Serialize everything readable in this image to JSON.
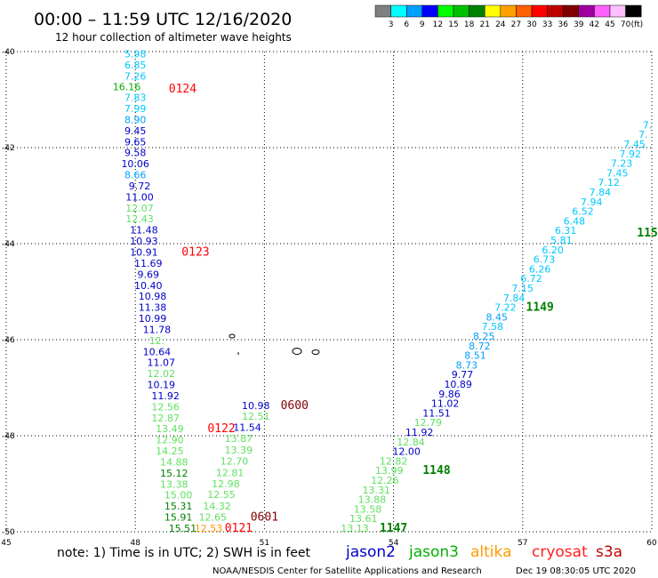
{
  "header": {
    "title": "00:00 – 11:59 UTC 12/16/2020",
    "subtitle": "12 hour collection of altimeter wave heights"
  },
  "legend": {
    "colors": [
      "#808080",
      "#00ffff",
      "#00a0ff",
      "#0000ff",
      "#00ff00",
      "#00c000",
      "#008000",
      "#ffff00",
      "#ffa000",
      "#ff6000",
      "#ff0000",
      "#c00000",
      "#800000",
      "#a000a0",
      "#ff60ff",
      "#ffc0ff",
      "#000000"
    ],
    "labels": [
      "3",
      "6",
      "9",
      "12",
      "15",
      "18",
      "21",
      "24",
      "27",
      "30",
      "33",
      "36",
      "39",
      "42",
      "45",
      "70"
    ],
    "unit": "(ft)"
  },
  "footer": {
    "note": "note:  1) Time is in UTC;  2) SWH is in feet",
    "satellites": [
      {
        "name": "jason2",
        "color": "#0000c8"
      },
      {
        "name": "jason3",
        "color": "#00b000"
      },
      {
        "name": "altika",
        "color": "#ff9900"
      },
      {
        "name": "cryosat",
        "color": "#ff2020"
      },
      {
        "name": "s3a",
        "color": "#c00000"
      }
    ],
    "credit": "NOAA/NESDIS Center for Satellite Applications and Research",
    "timestamp": "Dec 19 08:30:05 UTC 2020"
  },
  "chart_data": {
    "type": "scatter",
    "title": "12 hour collection of altimeter wave heights",
    "xlim": [
      45,
      60
    ],
    "ylim": [
      -50,
      -40
    ],
    "x_ticks": [
      "45",
      "48",
      "51",
      "54",
      "57",
      "60"
    ],
    "y_ticks": [
      "-40",
      "-42",
      "-44",
      "-46",
      "-48",
      "-50"
    ],
    "grid": true,
    "series": [
      {
        "name": "track 0124-0121",
        "points": [
          {
            "lon": 48.0,
            "lat": -40.12,
            "value": "5.98",
            "color": "#00c8ff"
          },
          {
            "lon": 48.0,
            "lat": -40.35,
            "value": "6.85",
            "color": "#00c8ff"
          },
          {
            "lon": 48.0,
            "lat": -40.58,
            "value": "7.26",
            "color": "#00c8ff"
          },
          {
            "lon": 47.8,
            "lat": -40.81,
            "value": "16.16",
            "color": "#00b000"
          },
          {
            "lon": 48.0,
            "lat": -41.03,
            "value": "7.83",
            "color": "#00c8ff"
          },
          {
            "lon": 48.0,
            "lat": -41.26,
            "value": "7.99",
            "color": "#00c8ff"
          },
          {
            "lon": 48.0,
            "lat": -41.49,
            "value": "8.90",
            "color": "#00a0ff"
          },
          {
            "lon": 48.0,
            "lat": -41.72,
            "value": "9.45",
            "color": "#0000c8"
          },
          {
            "lon": 48.0,
            "lat": -41.95,
            "value": "9.65",
            "color": "#0000c8"
          },
          {
            "lon": 48.0,
            "lat": -42.18,
            "value": "9.58",
            "color": "#0000c8"
          },
          {
            "lon": 48.0,
            "lat": -42.41,
            "value": "10.06",
            "color": "#0000c8"
          },
          {
            "lon": 48.0,
            "lat": -42.64,
            "value": "8.66",
            "color": "#00a0ff"
          },
          {
            "lon": 48.1,
            "lat": -42.87,
            "value": "9.72",
            "color": "#0000c8"
          },
          {
            "lon": 48.1,
            "lat": -43.1,
            "value": "11.00",
            "color": "#0000c8"
          },
          {
            "lon": 48.1,
            "lat": -43.33,
            "value": "12.07",
            "color": "#60e060"
          },
          {
            "lon": 48.1,
            "lat": -43.56,
            "value": "12.43",
            "color": "#60e060"
          },
          {
            "lon": 48.2,
            "lat": -43.79,
            "value": "11.48",
            "color": "#0000c8"
          },
          {
            "lon": 48.2,
            "lat": -44.02,
            "value": "10.93",
            "color": "#0000c8"
          },
          {
            "lon": 48.2,
            "lat": -44.25,
            "value": "10.91",
            "color": "#0000c8"
          },
          {
            "lon": 48.3,
            "lat": -44.48,
            "value": "11.69",
            "color": "#0000c8"
          },
          {
            "lon": 48.3,
            "lat": -44.71,
            "value": "9.69",
            "color": "#0000c8"
          },
          {
            "lon": 48.3,
            "lat": -44.94,
            "value": "10.40",
            "color": "#0000c8"
          },
          {
            "lon": 48.4,
            "lat": -45.17,
            "value": "10.98",
            "color": "#0000c8"
          },
          {
            "lon": 48.4,
            "lat": -45.4,
            "value": "11.38",
            "color": "#0000c8"
          },
          {
            "lon": 48.4,
            "lat": -45.63,
            "value": "10.99",
            "color": "#0000c8"
          },
          {
            "lon": 48.5,
            "lat": -45.86,
            "value": "11.78",
            "color": "#0000c8"
          },
          {
            "lon": 48.5,
            "lat": -46.09,
            "value": "12.",
            "color": "#60e060"
          },
          {
            "lon": 48.5,
            "lat": -46.32,
            "value": "10.64",
            "color": "#0000c8"
          },
          {
            "lon": 48.6,
            "lat": -46.55,
            "value": "11.07",
            "color": "#0000c8"
          },
          {
            "lon": 48.6,
            "lat": -46.78,
            "value": "12.02",
            "color": "#60e060"
          },
          {
            "lon": 48.6,
            "lat": -47.01,
            "value": "10.19",
            "color": "#0000c8"
          },
          {
            "lon": 48.7,
            "lat": -47.24,
            "value": "11.92",
            "color": "#0000c8"
          },
          {
            "lon": 48.7,
            "lat": -47.47,
            "value": "12.56",
            "color": "#60e060"
          },
          {
            "lon": 48.7,
            "lat": -47.7,
            "value": "12.87",
            "color": "#60e060"
          },
          {
            "lon": 48.8,
            "lat": -47.93,
            "value": "13.49",
            "color": "#60e060"
          },
          {
            "lon": 48.8,
            "lat": -48.16,
            "value": "12.90",
            "color": "#60e060"
          },
          {
            "lon": 48.8,
            "lat": -48.39,
            "value": "14.25",
            "color": "#60e060"
          },
          {
            "lon": 48.9,
            "lat": -48.62,
            "value": "14.88",
            "color": "#60e060"
          },
          {
            "lon": 48.9,
            "lat": -48.85,
            "value": "15.12",
            "color": "#008000"
          },
          {
            "lon": 48.9,
            "lat": -49.08,
            "value": "13.38",
            "color": "#60e060"
          },
          {
            "lon": 49.0,
            "lat": -49.31,
            "value": "15.00",
            "color": "#60e060"
          },
          {
            "lon": 49.0,
            "lat": -49.54,
            "value": "15.31",
            "color": "#008000"
          },
          {
            "lon": 49.0,
            "lat": -49.77,
            "value": "15.91",
            "color": "#008000"
          },
          {
            "lon": 49.1,
            "lat": -50.0,
            "value": "15.51",
            "color": "#008000"
          }
        ]
      },
      {
        "name": "track 0600-0601",
        "points": [
          {
            "lon": 50.8,
            "lat": -47.44,
            "value": "10.98",
            "color": "#0000c8"
          },
          {
            "lon": 50.8,
            "lat": -47.67,
            "value": "12.51",
            "color": "#60e060"
          },
          {
            "lon": 50.6,
            "lat": -47.9,
            "value": "11.54",
            "color": "#0000c8"
          },
          {
            "lon": 50.4,
            "lat": -48.13,
            "value": "13.87",
            "color": "#60e060"
          },
          {
            "lon": 50.4,
            "lat": -48.37,
            "value": "13.39",
            "color": "#60e060"
          },
          {
            "lon": 50.3,
            "lat": -48.6,
            "value": "12.70",
            "color": "#60e060"
          },
          {
            "lon": 50.2,
            "lat": -48.84,
            "value": "12.81",
            "color": "#60e060"
          },
          {
            "lon": 50.1,
            "lat": -49.07,
            "value": "12.98",
            "color": "#60e060"
          },
          {
            "lon": 50.0,
            "lat": -49.3,
            "value": "12.55",
            "color": "#60e060"
          },
          {
            "lon": 49.9,
            "lat": -49.54,
            "value": "14.32",
            "color": "#60e060"
          },
          {
            "lon": 49.8,
            "lat": -49.77,
            "value": "12.65",
            "color": "#60e060"
          },
          {
            "lon": 49.7,
            "lat": -50.0,
            "value": "12.53",
            "color": "#ff9900"
          }
        ]
      },
      {
        "name": "track 1147-1150",
        "points": [
          {
            "lon": 53.1,
            "lat": -50.0,
            "value": "13.13",
            "color": "#60e060"
          },
          {
            "lon": 53.3,
            "lat": -49.8,
            "value": "13.61",
            "color": "#60e060"
          },
          {
            "lon": 53.4,
            "lat": -49.6,
            "value": "13.58",
            "color": "#60e060"
          },
          {
            "lon": 53.5,
            "lat": -49.4,
            "value": "13.88",
            "color": "#60e060"
          },
          {
            "lon": 53.6,
            "lat": -49.2,
            "value": "13.31",
            "color": "#60e060"
          },
          {
            "lon": 53.8,
            "lat": -49.0,
            "value": "12.26",
            "color": "#60e060"
          },
          {
            "lon": 53.9,
            "lat": -48.8,
            "value": "13.99",
            "color": "#60e060"
          },
          {
            "lon": 54.0,
            "lat": -48.6,
            "value": "12.82",
            "color": "#60e060"
          },
          {
            "lon": 54.3,
            "lat": -48.4,
            "value": "12.00",
            "color": "#0000c8"
          },
          {
            "lon": 54.4,
            "lat": -48.2,
            "value": "12.84",
            "color": "#60e060"
          },
          {
            "lon": 54.6,
            "lat": -48.0,
            "value": "11.92",
            "color": "#0000c8"
          },
          {
            "lon": 54.8,
            "lat": -47.8,
            "value": "12.79",
            "color": "#60e060"
          },
          {
            "lon": 55.0,
            "lat": -47.6,
            "value": "11.51",
            "color": "#0000c8"
          },
          {
            "lon": 55.2,
            "lat": -47.4,
            "value": "11.02",
            "color": "#0000c8"
          },
          {
            "lon": 55.3,
            "lat": -47.2,
            "value": "9.86",
            "color": "#0000c8"
          },
          {
            "lon": 55.5,
            "lat": -47.0,
            "value": "10.89",
            "color": "#0000c8"
          },
          {
            "lon": 55.6,
            "lat": -46.8,
            "value": "9.77",
            "color": "#0000c8"
          },
          {
            "lon": 55.7,
            "lat": -46.6,
            "value": "8.73",
            "color": "#00a0ff"
          },
          {
            "lon": 55.9,
            "lat": -46.4,
            "value": "8.51",
            "color": "#00a0ff"
          },
          {
            "lon": 56.0,
            "lat": -46.2,
            "value": "8.72",
            "color": "#00a0ff"
          },
          {
            "lon": 56.1,
            "lat": -46.0,
            "value": "8.25",
            "color": "#00a0ff"
          },
          {
            "lon": 56.3,
            "lat": -45.8,
            "value": "7.58",
            "color": "#00c8ff"
          },
          {
            "lon": 56.4,
            "lat": -45.6,
            "value": "8.45",
            "color": "#00a0ff"
          },
          {
            "lon": 56.6,
            "lat": -45.4,
            "value": "7.22",
            "color": "#00c8ff"
          },
          {
            "lon": 56.8,
            "lat": -45.2,
            "value": "7.84",
            "color": "#00c8ff"
          },
          {
            "lon": 57.0,
            "lat": -45.0,
            "value": "7.15",
            "color": "#00c8ff"
          },
          {
            "lon": 57.2,
            "lat": -44.8,
            "value": "6.72",
            "color": "#00c8ff"
          },
          {
            "lon": 57.4,
            "lat": -44.6,
            "value": "6.26",
            "color": "#00c8ff"
          },
          {
            "lon": 57.5,
            "lat": -44.4,
            "value": "6.73",
            "color": "#00c8ff"
          },
          {
            "lon": 57.7,
            "lat": -44.2,
            "value": "6.20",
            "color": "#00c8ff"
          },
          {
            "lon": 57.9,
            "lat": -44.0,
            "value": "5.81",
            "color": "#00c8ff"
          },
          {
            "lon": 58.0,
            "lat": -43.8,
            "value": "6.31",
            "color": "#00c8ff"
          },
          {
            "lon": 58.2,
            "lat": -43.6,
            "value": "6.48",
            "color": "#00c8ff"
          },
          {
            "lon": 58.4,
            "lat": -43.4,
            "value": "6.52",
            "color": "#00c8ff"
          },
          {
            "lon": 58.6,
            "lat": -43.2,
            "value": "7.94",
            "color": "#00c8ff"
          },
          {
            "lon": 58.8,
            "lat": -43.0,
            "value": "7.84",
            "color": "#00c8ff"
          },
          {
            "lon": 59.0,
            "lat": -42.8,
            "value": "7.12",
            "color": "#00c8ff"
          },
          {
            "lon": 59.2,
            "lat": -42.6,
            "value": "7.45",
            "color": "#00c8ff"
          },
          {
            "lon": 59.3,
            "lat": -42.4,
            "value": "7.23",
            "color": "#00c8ff"
          },
          {
            "lon": 59.5,
            "lat": -42.2,
            "value": "7.92",
            "color": "#00c8ff"
          },
          {
            "lon": 59.6,
            "lat": -42.0,
            "value": "7.45",
            "color": "#00c8ff"
          },
          {
            "lon": 59.8,
            "lat": -41.8,
            "value": "7.",
            "color": "#00c8ff"
          },
          {
            "lon": 59.9,
            "lat": -41.6,
            "value": "7.",
            "color": "#00c8ff"
          }
        ]
      }
    ],
    "pass_times": [
      {
        "label": "0124",
        "lon": 49.1,
        "lat": -40.85,
        "color": "#ff0000"
      },
      {
        "label": "0123",
        "lon": 49.4,
        "lat": -44.25,
        "color": "#ff0000"
      },
      {
        "label": "0122",
        "lon": 50.0,
        "lat": -47.93,
        "color": "#ff0000"
      },
      {
        "label": "0121",
        "lon": 50.4,
        "lat": -50.0,
        "color": "#ff0000"
      },
      {
        "label": "0600",
        "lon": 51.7,
        "lat": -47.44,
        "color": "#800000"
      },
      {
        "label": "0601",
        "lon": 51.0,
        "lat": -49.77,
        "color": "#800000"
      },
      {
        "label": "1147",
        "lon": 54.0,
        "lat": -50.0,
        "color": "#008000"
      },
      {
        "label": "1148",
        "lon": 55.0,
        "lat": -48.8,
        "color": "#008000"
      },
      {
        "label": "1149",
        "lon": 57.4,
        "lat": -45.4,
        "color": "#008000"
      },
      {
        "label": "115",
        "lon": 59.9,
        "lat": -43.85,
        "color": "#008000"
      }
    ]
  }
}
